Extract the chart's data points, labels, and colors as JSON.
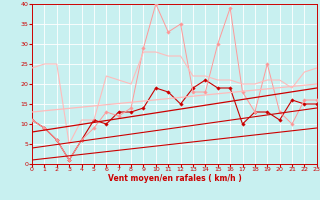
{
  "xlabel": "Vent moyen/en rafales ( km/h )",
  "xlim": [
    0,
    23
  ],
  "ylim": [
    0,
    40
  ],
  "yticks": [
    0,
    5,
    10,
    15,
    20,
    25,
    30,
    35,
    40
  ],
  "xticks": [
    0,
    1,
    2,
    3,
    4,
    5,
    6,
    7,
    8,
    9,
    10,
    11,
    12,
    13,
    14,
    15,
    16,
    17,
    18,
    19,
    20,
    21,
    22,
    23
  ],
  "bg_color": "#c8f0f0",
  "grid_color": "#ffffff",
  "lines": [
    {
      "x": [
        0,
        1,
        2,
        3,
        4,
        5,
        6,
        7,
        8,
        9,
        10,
        11,
        12,
        13,
        14,
        15,
        16,
        17,
        18,
        19,
        20,
        21,
        22,
        23
      ],
      "y": [
        11,
        9,
        6,
        1,
        6,
        11,
        10,
        13,
        13,
        14,
        19,
        18,
        15,
        19,
        21,
        19,
        19,
        10,
        13,
        13,
        11,
        16,
        15,
        15
      ],
      "color": "#cc0000",
      "marker": "D",
      "markersize": 1.8,
      "linewidth": 0.8,
      "linestyle": "-"
    },
    {
      "x": [
        0,
        1,
        2,
        3,
        4,
        5,
        6,
        7,
        8,
        9,
        10,
        11,
        12,
        13,
        14,
        15,
        16,
        17,
        18,
        19,
        20,
        21,
        22,
        23
      ],
      "y": [
        11,
        9,
        6,
        1,
        6,
        9,
        13,
        12,
        14,
        29,
        40,
        33,
        35,
        18,
        18,
        30,
        39,
        18,
        13,
        25,
        13,
        10,
        16,
        16
      ],
      "color": "#ff9999",
      "marker": "D",
      "markersize": 1.8,
      "linewidth": 0.7,
      "linestyle": "-"
    },
    {
      "x": [
        0,
        1,
        2,
        3,
        4,
        5,
        6,
        7,
        8,
        9,
        10,
        11,
        12,
        13,
        14,
        15,
        16,
        17,
        18,
        19,
        20,
        21,
        22,
        23
      ],
      "y": [
        24,
        25,
        25,
        5,
        11,
        11,
        22,
        21,
        20,
        28,
        28,
        27,
        27,
        22,
        22,
        21,
        21,
        20,
        20,
        21,
        21,
        19,
        23,
        24
      ],
      "color": "#ffbbbb",
      "marker": null,
      "markersize": 0,
      "linewidth": 0.8,
      "linestyle": "-"
    },
    {
      "x": [
        0,
        23
      ],
      "y": [
        13,
        20
      ],
      "color": "#ffbbbb",
      "marker": null,
      "markersize": 0,
      "linewidth": 0.9,
      "linestyle": "-"
    },
    {
      "x": [
        0,
        23
      ],
      "y": [
        8,
        19
      ],
      "color": "#cc0000",
      "marker": null,
      "markersize": 0,
      "linewidth": 0.9,
      "linestyle": "-"
    },
    {
      "x": [
        0,
        23
      ],
      "y": [
        4,
        14
      ],
      "color": "#cc0000",
      "marker": null,
      "markersize": 0,
      "linewidth": 0.8,
      "linestyle": "-"
    },
    {
      "x": [
        0,
        23
      ],
      "y": [
        1,
        9
      ],
      "color": "#cc0000",
      "marker": null,
      "markersize": 0,
      "linewidth": 0.8,
      "linestyle": "-"
    }
  ],
  "wind_arrows_color": "#cc0000",
  "arrow_angles_deg": [
    225,
    225,
    315,
    90,
    315,
    270,
    0,
    45,
    45,
    0,
    0,
    45,
    45,
    0,
    0,
    45,
    0,
    0,
    225,
    225,
    225,
    225,
    225,
    225
  ]
}
